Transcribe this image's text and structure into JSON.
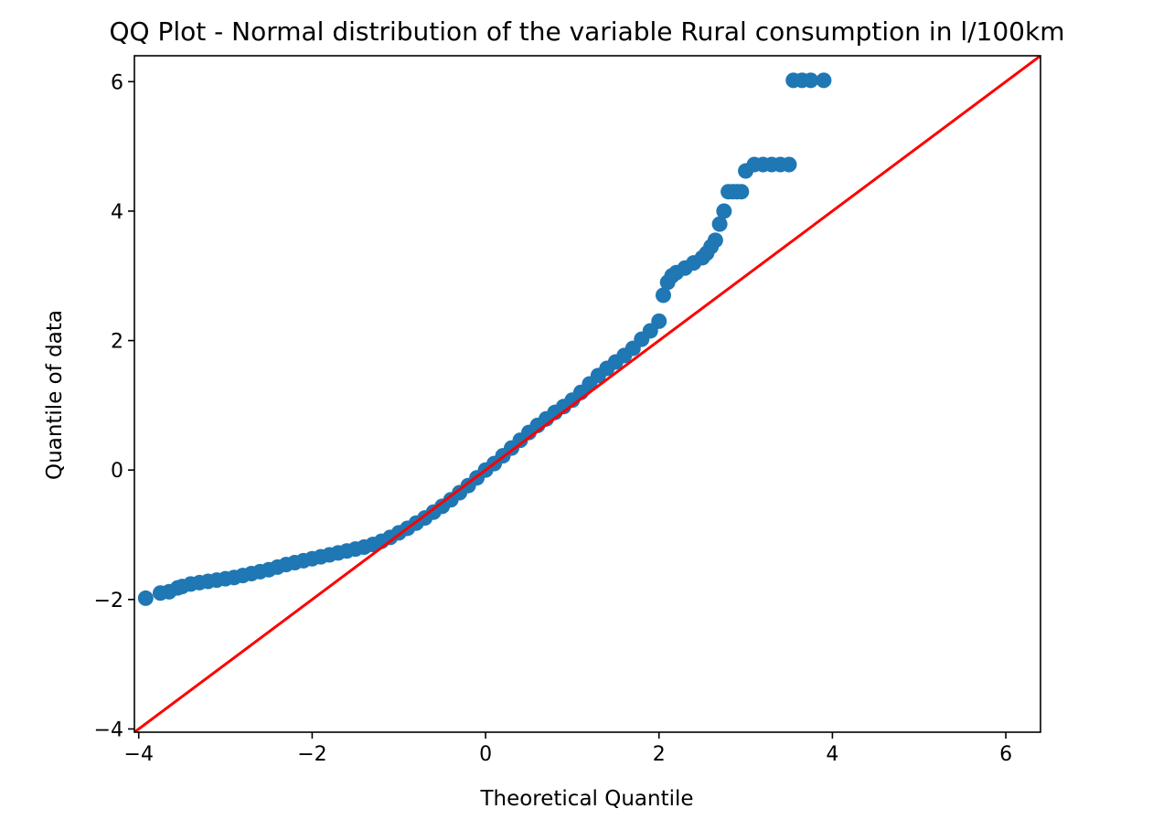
{
  "chart_data": {
    "type": "scatter",
    "title": "QQ Plot - Normal distribution of the variable Rural consumption in l/100km",
    "xlabel": "Theoretical Quantile",
    "ylabel": "Quantile of data",
    "xlim": [
      -4.05,
      6.4
    ],
    "ylim": [
      -4.05,
      6.4
    ],
    "xticks": [
      -4,
      -2,
      0,
      2,
      4,
      6
    ],
    "yticks": [
      -4,
      -2,
      0,
      2,
      4,
      6
    ],
    "xtick_labels": [
      "−4",
      "−2",
      "0",
      "2",
      "4",
      "6"
    ],
    "ytick_labels": [
      "−4",
      "−2",
      "0",
      "2",
      "4",
      "6"
    ],
    "grid": false,
    "legend": "none",
    "marker_color": "#1f77b4",
    "reference_line": {
      "color": "#ff0000",
      "x": [
        -4.05,
        6.4
      ],
      "y": [
        -4.05,
        6.4
      ]
    },
    "series": [
      {
        "values_x": [
          -3.92,
          -3.75,
          -3.65,
          -3.55,
          -3.5,
          -3.4,
          -3.3,
          -3.2,
          -3.1,
          -3.0,
          -2.9,
          -2.8,
          -2.7,
          -2.6,
          -2.5,
          -2.4,
          -2.3,
          -2.2,
          -2.1,
          -2.0,
          -1.9,
          -1.8,
          -1.7,
          -1.6,
          -1.5,
          -1.4,
          -1.3,
          -1.2,
          -1.1,
          -1.0,
          -0.9,
          -0.8,
          -0.7,
          -0.6,
          -0.5,
          -0.4,
          -0.3,
          -0.2,
          -0.1,
          0.0,
          0.1,
          0.2,
          0.3,
          0.4,
          0.5,
          0.6,
          0.7,
          0.8,
          0.9,
          1.0,
          1.1,
          1.2,
          1.3,
          1.4,
          1.5,
          1.6,
          1.7,
          1.8,
          1.9,
          2.0,
          2.05,
          2.1,
          2.15,
          2.2,
          2.3,
          2.4,
          2.5,
          2.55,
          2.6,
          2.65,
          2.7,
          2.75,
          2.8,
          2.85,
          2.9,
          2.95,
          3.0,
          3.1,
          3.2,
          3.3,
          3.4,
          3.5,
          3.55,
          3.65,
          3.75,
          3.9
        ],
        "values_y": [
          -1.98,
          -1.9,
          -1.88,
          -1.82,
          -1.8,
          -1.76,
          -1.74,
          -1.72,
          -1.7,
          -1.68,
          -1.66,
          -1.63,
          -1.6,
          -1.57,
          -1.54,
          -1.5,
          -1.46,
          -1.43,
          -1.4,
          -1.37,
          -1.34,
          -1.31,
          -1.28,
          -1.25,
          -1.22,
          -1.19,
          -1.15,
          -1.1,
          -1.04,
          -0.97,
          -0.9,
          -0.82,
          -0.74,
          -0.65,
          -0.56,
          -0.46,
          -0.35,
          -0.24,
          -0.12,
          0.0,
          0.1,
          0.22,
          0.34,
          0.46,
          0.58,
          0.69,
          0.79,
          0.89,
          0.98,
          1.08,
          1.2,
          1.33,
          1.46,
          1.57,
          1.67,
          1.77,
          1.88,
          2.02,
          2.15,
          2.3,
          2.7,
          2.9,
          3.0,
          3.05,
          3.12,
          3.2,
          3.28,
          3.35,
          3.45,
          3.55,
          3.8,
          4.0,
          4.3,
          4.3,
          4.3,
          4.3,
          4.62,
          4.72,
          4.72,
          4.72,
          4.72,
          4.72,
          6.02,
          6.02,
          6.02,
          6.02
        ]
      }
    ]
  }
}
